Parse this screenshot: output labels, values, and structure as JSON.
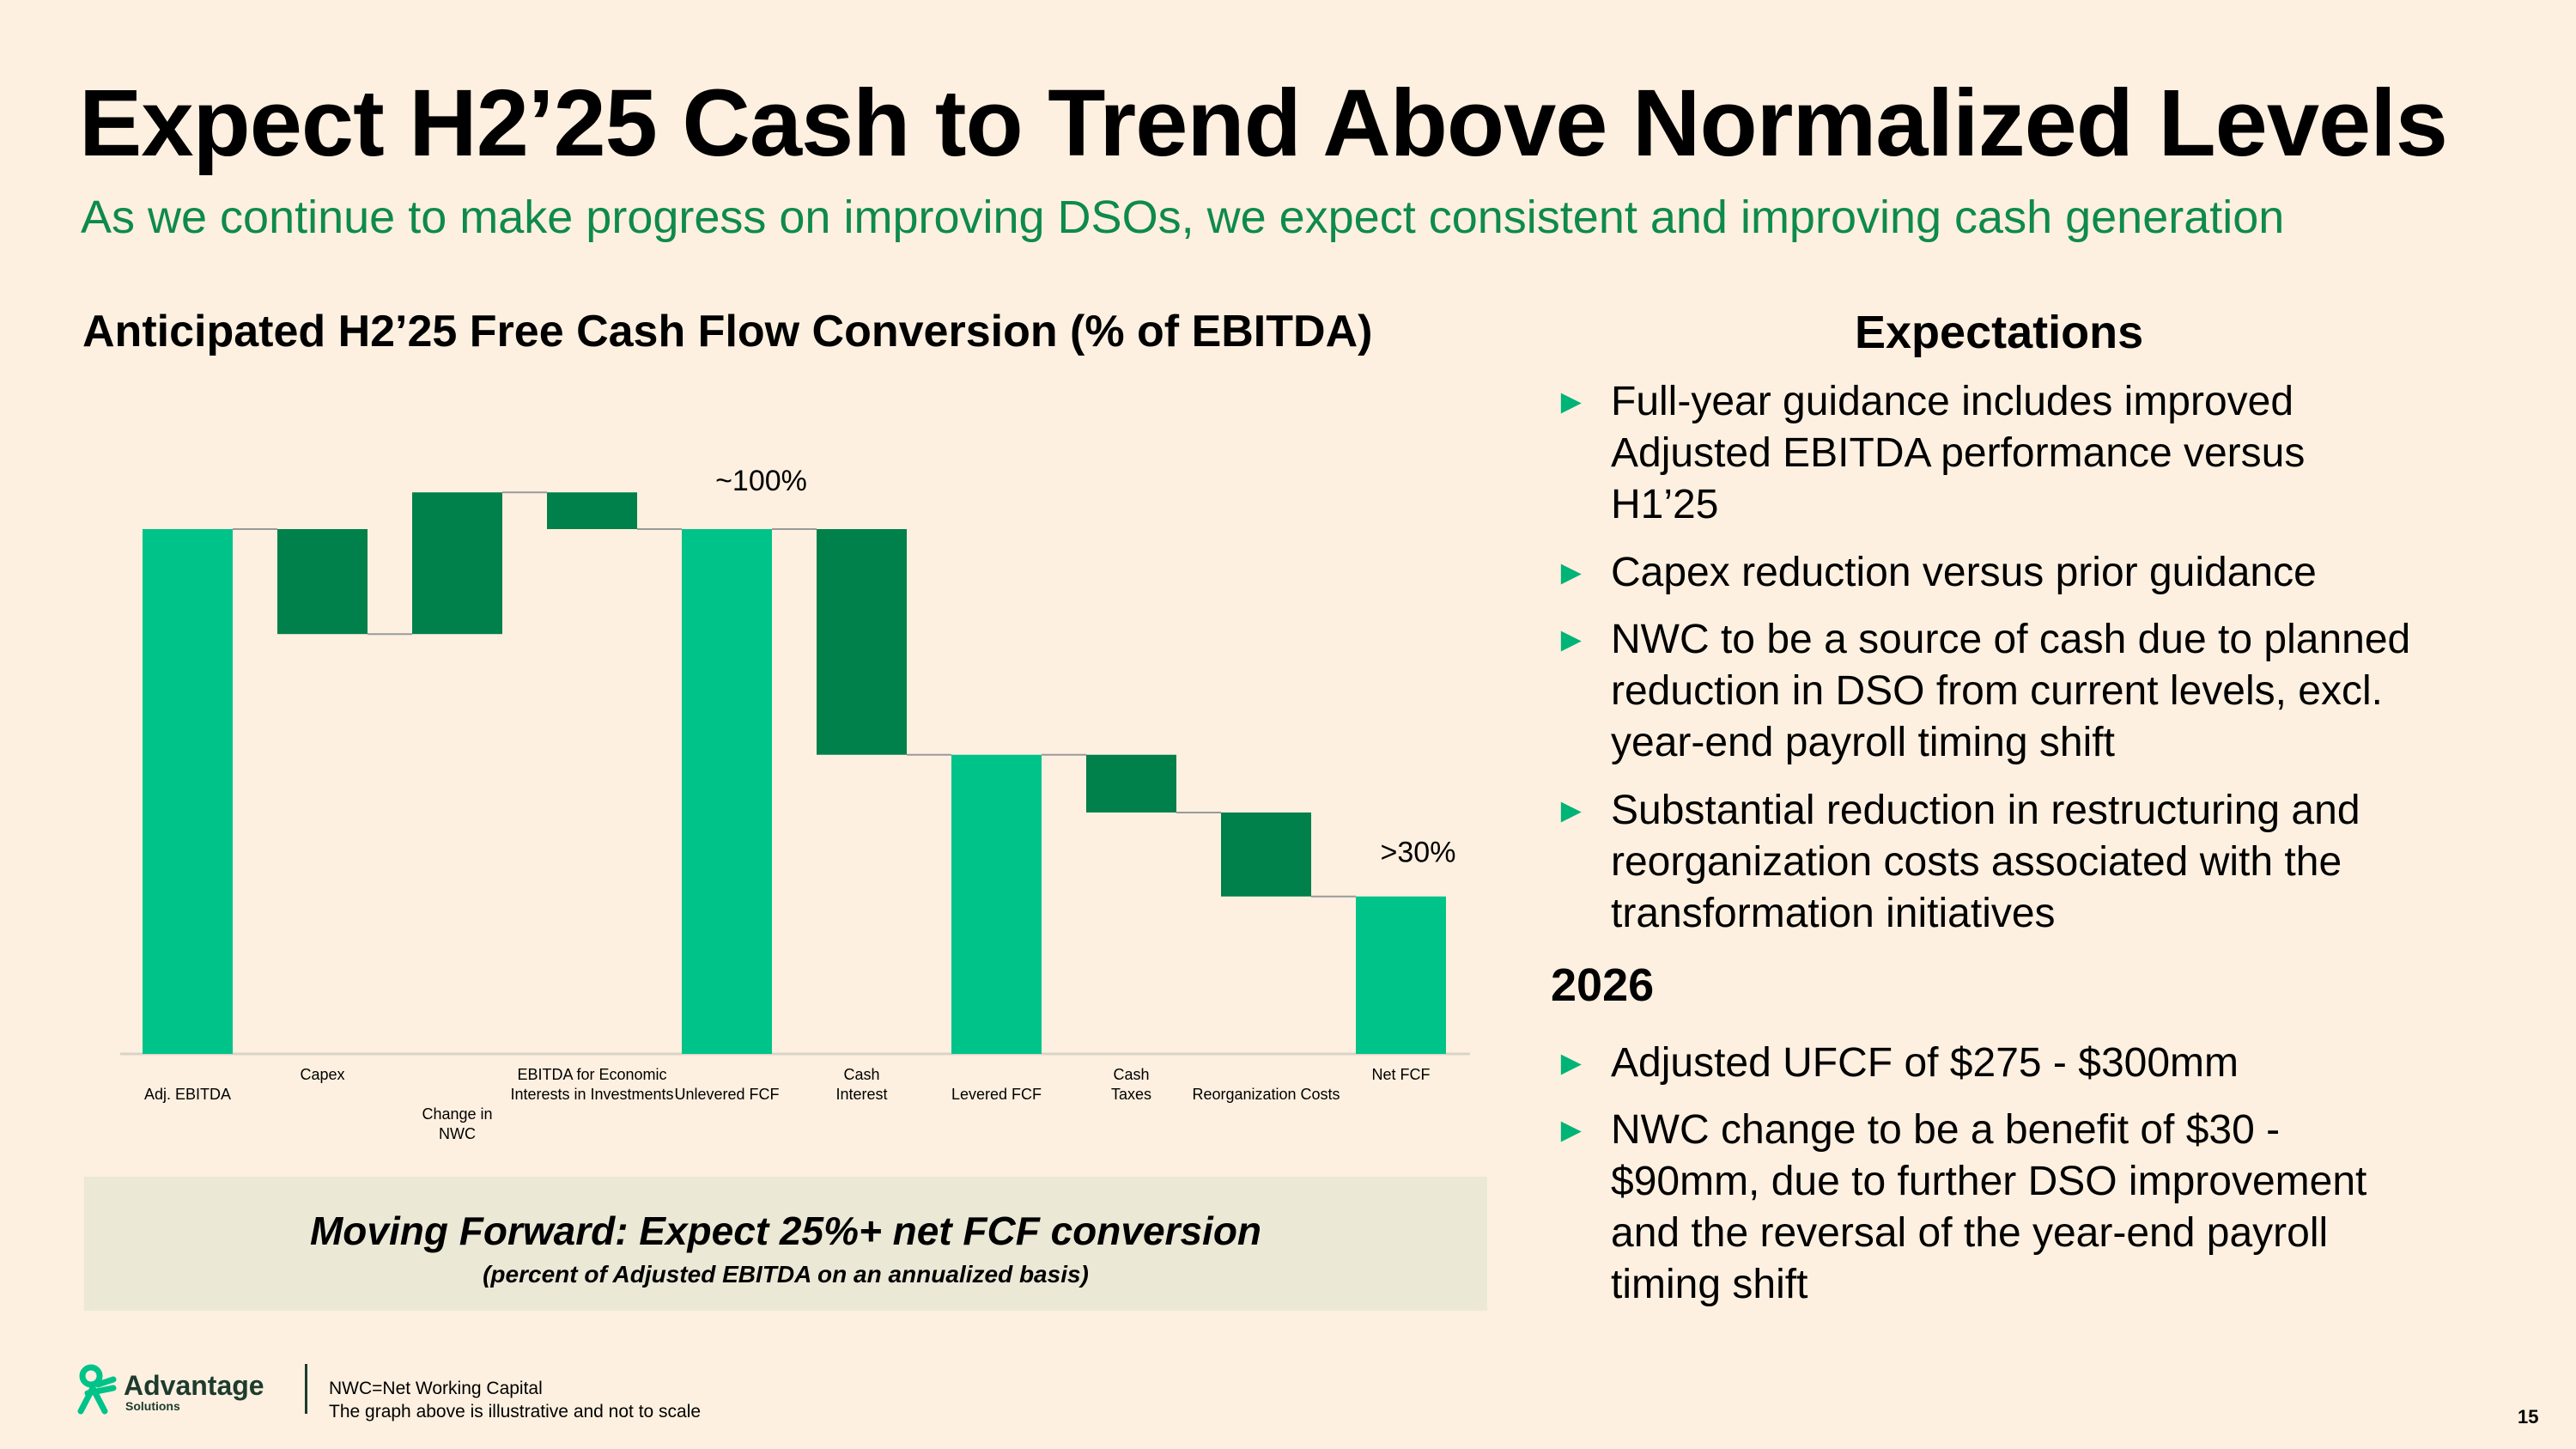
{
  "title": "Expect H2’25 Cash to Trend Above Normalized Levels",
  "subtitle": "As we continue to make progress on improving DSOs, we expect consistent and improving cash generation",
  "chart_data": {
    "type": "waterfall",
    "title": "Anticipated H2’25 Free Cash Flow Conversion (% of EBITDA)",
    "categories": [
      [
        "Adj. EBITDA"
      ],
      [
        "Capex"
      ],
      [
        "Change in",
        "NWC"
      ],
      [
        "EBITDA for Economic",
        "Interests in Investments"
      ],
      [
        "Unlevered FCF"
      ],
      [
        "Cash",
        "Interest"
      ],
      [
        "Levered FCF"
      ],
      [
        "Cash",
        "Taxes"
      ],
      [
        "Reorganization Costs"
      ],
      [
        "Net FCF"
      ]
    ],
    "kinds": [
      "total",
      "delta",
      "delta",
      "delta",
      "total",
      "delta",
      "total",
      "delta",
      "delta",
      "total"
    ],
    "values": [
      100,
      -20,
      27,
      -7,
      100,
      -43,
      57,
      -11,
      -16,
      30
    ],
    "data_labels": {
      "4": "~100%",
      "9": ">30%"
    },
    "ylim": [
      0,
      110
    ],
    "note": "illustrative, not to scale",
    "colors": {
      "total": "#00C389",
      "delta": "#00804A"
    }
  },
  "callout": {
    "line1": "Moving Forward: Expect 25%+ net FCF conversion",
    "line2": "(percent of Adjusted EBITDA on an annualized basis)"
  },
  "expectations": {
    "heading": "Expectations",
    "bullets": [
      "Full-year guidance includes improved Adjusted EBITDA performance versus H1’25",
      "Capex reduction versus prior guidance",
      "NWC to be a source of cash due to planned reduction in DSO from current levels, excl. year-end payroll timing shift",
      "Substantial reduction in restructuring and reorganization costs associated with the transformation initiatives"
    ],
    "year": "2026",
    "bullets_2026": [
      "Adjusted UFCF of $275 - $300mm",
      "NWC change to be a benefit of $30 - $90mm, due to further DSO improvement and the reversal of the year-end payroll timing shift"
    ]
  },
  "bullet_glyph": "►",
  "logo": {
    "name": "Advantage",
    "sub": "Solutions"
  },
  "footnotes": [
    "NWC=Net Working Capital",
    "The graph above is illustrative and not to scale"
  ],
  "page": "15"
}
